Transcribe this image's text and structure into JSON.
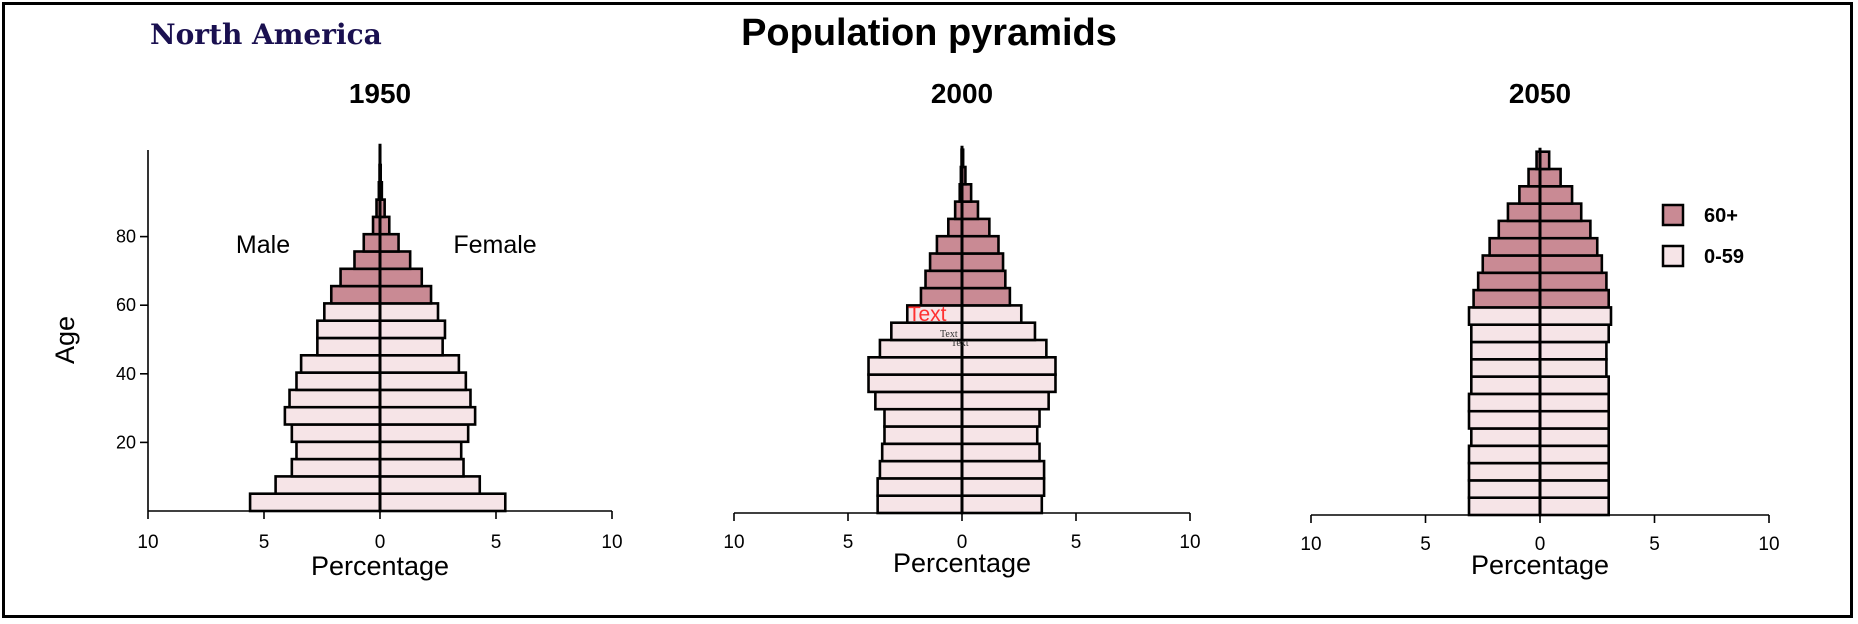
{
  "chart_data": {
    "type": "bar",
    "region": "North America",
    "title": "Population pyramids",
    "ylabel": "Age",
    "xlabel": "Percentage",
    "y_ticks": [
      20,
      40,
      60,
      80
    ],
    "x_ticks": [
      "10",
      "5",
      "0",
      "5",
      "10"
    ],
    "xlim": [
      -10,
      10
    ],
    "age_groups": [
      "0-4",
      "5-9",
      "10-14",
      "15-19",
      "20-24",
      "25-29",
      "30-34",
      "35-39",
      "40-44",
      "45-49",
      "50-54",
      "55-59",
      "60-64",
      "65-69",
      "70-74",
      "75-79",
      "80-84",
      "85-89",
      "90-94",
      "95-99",
      "100+"
    ],
    "legend": [
      {
        "label": "60+",
        "color": "#c98a94"
      },
      {
        "label": "0-59",
        "color": "#f6e4e7"
      }
    ],
    "legend_position": "top-right",
    "side_labels": {
      "male": "Male",
      "female": "Female"
    },
    "annotations": [
      {
        "text": "Text",
        "color": "#ff3030"
      },
      {
        "text": "Text",
        "color": "#333333"
      },
      {
        "text": "Text",
        "color": "#333333"
      }
    ],
    "panels": [
      {
        "year": "1950",
        "male": [
          5.6,
          4.5,
          3.8,
          3.6,
          3.8,
          4.1,
          3.9,
          3.6,
          3.4,
          2.7,
          2.7,
          2.4,
          2.1,
          1.7,
          1.1,
          0.7,
          0.3,
          0.15,
          0.05,
          0.02,
          0.01
        ],
        "female": [
          5.4,
          4.3,
          3.6,
          3.5,
          3.8,
          4.1,
          3.9,
          3.7,
          3.4,
          2.7,
          2.8,
          2.5,
          2.2,
          1.8,
          1.3,
          0.8,
          0.4,
          0.2,
          0.08,
          0.03,
          0.01
        ]
      },
      {
        "year": "2000",
        "male": [
          3.7,
          3.7,
          3.6,
          3.5,
          3.4,
          3.4,
          3.8,
          4.1,
          4.1,
          3.6,
          3.1,
          2.4,
          1.8,
          1.6,
          1.4,
          1.1,
          0.6,
          0.3,
          0.1,
          0.05,
          0.02
        ],
        "female": [
          3.5,
          3.6,
          3.6,
          3.4,
          3.3,
          3.4,
          3.8,
          4.1,
          4.1,
          3.7,
          3.2,
          2.6,
          2.1,
          1.9,
          1.8,
          1.6,
          1.2,
          0.7,
          0.4,
          0.15,
          0.05
        ]
      },
      {
        "year": "2050",
        "male": [
          3.1,
          3.1,
          3.1,
          3.1,
          3.0,
          3.1,
          3.1,
          3.0,
          3.0,
          3.0,
          3.0,
          3.1,
          2.9,
          2.7,
          2.5,
          2.2,
          1.8,
          1.4,
          0.9,
          0.5,
          0.15
        ],
        "female": [
          3.0,
          3.0,
          3.0,
          3.0,
          3.0,
          3.0,
          3.0,
          3.0,
          2.9,
          2.9,
          3.0,
          3.1,
          3.0,
          2.9,
          2.7,
          2.5,
          2.2,
          1.8,
          1.4,
          0.9,
          0.4
        ]
      }
    ]
  }
}
